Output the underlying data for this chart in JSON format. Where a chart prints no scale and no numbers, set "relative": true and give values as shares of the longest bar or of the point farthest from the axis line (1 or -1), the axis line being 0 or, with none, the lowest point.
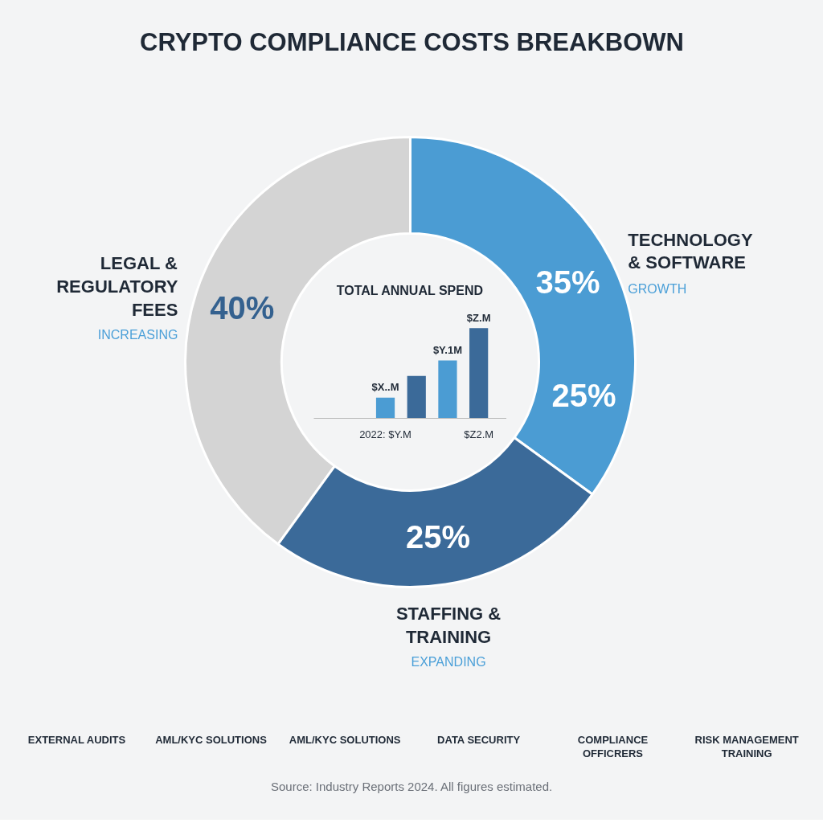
{
  "chart_data": [
    {
      "type": "donut",
      "title": "CRYPTO COMPLIANCE COSTS BREAKBOWN",
      "categories": [
        "LEGAL & REGULATORY FEES",
        "TECHNOLOGY & SOFTWARE",
        "STAFFING & TRAINING"
      ],
      "values": [
        40,
        35,
        25
      ],
      "colors": [
        "#d4d4d4",
        "#4b9cd3",
        "#3b6a99"
      ],
      "value_labels": [
        "40%",
        "35%",
        "25%"
      ],
      "annotations": [
        "INCREASING",
        "GROWTH",
        "EXPANDING",
        "25%"
      ]
    },
    {
      "type": "bar",
      "title": "TOTAL ANNUAL SPEND",
      "categories": [
        "2022: $Y.M",
        null,
        null,
        "$Z2.M"
      ],
      "values": [
        0.23,
        0.47,
        0.64,
        1
      ],
      "colors": [
        "#4b9cd3",
        "#3b6a99",
        "#4b9cd3",
        "#3b6a99"
      ],
      "relative": true,
      "annotations": [
        {
          "text": "$X..M",
          "x": "2022: $Y.M",
          "y": 0.23
        },
        {
          "text": "$Y.1M",
          "y": 0.64
        },
        {
          "text": "$Z.M",
          "x": "$Z2.M",
          "y": 1
        }
      ]
    },
    {
      "type": "other",
      "categories": [
        "EXTERNAL AUDITS",
        "AML/KYC SOLUTIONS",
        "AML/KYC SOLUTIONS",
        "DATA SECURITY",
        "COMPLIANCE OFFICRERS",
        "RISK MANAGEMENT TRAINING"
      ],
      "annotations": [
        "Source: Industry Reports 2024. All figures estimated."
      ]
    }
  ]
}
